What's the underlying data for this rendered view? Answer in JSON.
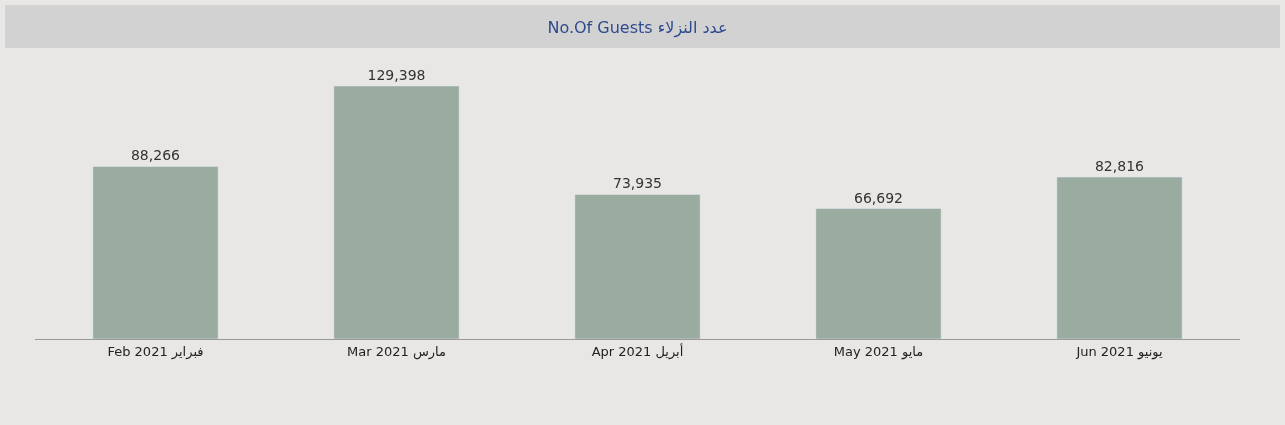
{
  "chart_data": {
    "type": "bar",
    "title": "No.Of Guests عدد النزلاء",
    "categories": [
      "Feb 2021 فبراير",
      "Mar 2021 مارس",
      "Apr 2021 أبريل",
      "May 2021 مايو",
      "Jun 2021 يونيو"
    ],
    "values": [
      88266,
      129398,
      73935,
      66692,
      82816
    ],
    "value_labels": [
      "88,266",
      "129,398",
      "73,935",
      "66,692",
      "82,816"
    ],
    "color": "#9aaba0",
    "tick_labels": "x",
    "grid": false,
    "legend": false
  }
}
